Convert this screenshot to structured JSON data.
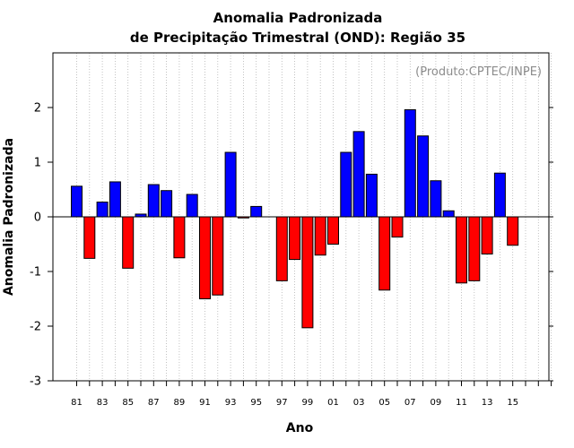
{
  "chart_data": {
    "type": "bar",
    "title_line1": "Anomalia Padronizada",
    "title_line2": "de Precipitação Trimestral (OND): Região 35",
    "xlabel": "Ano",
    "ylabel": "Anomalia Padronizada",
    "credit": "(Produto:CPTEC/INPE)",
    "ylim": [
      -3,
      3
    ],
    "yticks": [
      2,
      1,
      0,
      -1,
      -2,
      -3
    ],
    "ytick_labels": [
      "2",
      "1",
      "0",
      "-1",
      "-2",
      "-3"
    ],
    "xtick_labels": [
      "81",
      "83",
      "85",
      "87",
      "89",
      "91",
      "93",
      "95",
      "97",
      "99",
      "01",
      "03",
      "05",
      "07",
      "09",
      "11",
      "13",
      "15"
    ],
    "grid": "vertical dotted",
    "positive_color": "#0000ff",
    "negative_color": "#ff0000",
    "categories": [
      "1981",
      "1982",
      "1983",
      "1984",
      "1985",
      "1986",
      "1987",
      "1988",
      "1989",
      "1990",
      "1991",
      "1992",
      "1993",
      "1994",
      "1995",
      "1996",
      "1997",
      "1998",
      "1999",
      "2000",
      "2001",
      "2002",
      "2003",
      "2004",
      "2005",
      "2006",
      "2007",
      "2008",
      "2009",
      "2010",
      "2011",
      "2012",
      "2013",
      "2014",
      "2015",
      "2016",
      "2017",
      "2018"
    ],
    "values": [
      0.56,
      -0.76,
      0.27,
      0.64,
      -0.94,
      0.05,
      0.59,
      0.48,
      -0.75,
      0.41,
      -1.5,
      -1.43,
      1.18,
      -0.02,
      0.19,
      null,
      -1.17,
      -0.78,
      -2.03,
      -0.7,
      -0.5,
      1.18,
      1.56,
      0.78,
      -1.34,
      -0.37,
      1.96,
      1.48,
      0.66,
      0.11,
      -1.21,
      -1.17,
      -0.68,
      0.8,
      -0.52,
      null,
      null,
      null
    ]
  }
}
